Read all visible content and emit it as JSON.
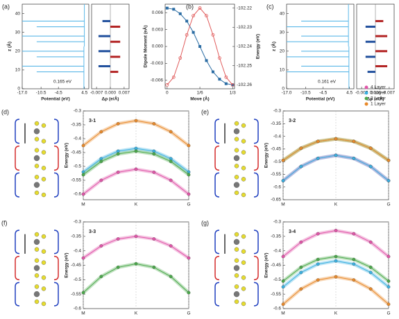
{
  "chart_data": [
    {
      "type": "profile",
      "label": "(a)",
      "xlabel": "Potential (eV)",
      "ylabel": "z (Å)",
      "xlim": [
        -17,
        6
      ],
      "xticks": [
        {
          "value": -17,
          "label": "-17.0"
        },
        {
          "value": -10.5,
          "label": "-10.5"
        },
        {
          "value": -4.5,
          "label": "-4.5"
        },
        4.5
      ],
      "ylim": [
        0,
        45
      ],
      "yticks": [
        0,
        10,
        20,
        30,
        40
      ],
      "z": [
        9,
        12,
        17,
        20,
        25,
        28,
        33,
        36
      ],
      "values": [
        -12,
        -17,
        -12,
        -17,
        -12,
        -17,
        -12,
        -17
      ],
      "vacuum": [
        4.3,
        4.465
      ],
      "color": "#5bb8e8",
      "annotation": "0.165 eV",
      "drho_label": "Δρ (e/Å)",
      "drho_xlim": [
        -0.0095,
        0.0095
      ],
      "drho_xticks": [
        -0.007,
        {
          "value": 0,
          "label": "0.000"
        },
        0.007
      ],
      "drho": [
        0.004,
        -0.006,
        0.005,
        -0.006,
        0.005,
        -0.006,
        0.005,
        -0.004
      ]
    },
    {
      "type": "dual",
      "label": "(b)",
      "xlabel": "Move (Å)",
      "ylabel": "Dipole Moment (eÅ)",
      "y2label": "Energy (eV)",
      "x": [
        0,
        0.0333,
        0.0667,
        0.1,
        0.1333,
        0.1667,
        0.2,
        0.2333,
        0.2667,
        0.3,
        0.3333
      ],
      "xlim": [
        -0.01,
        0.343
      ],
      "xticks": [
        0,
        {
          "value": 0.1667,
          "label": "1/6"
        },
        {
          "value": 0.3333,
          "label": "1/3"
        }
      ],
      "ylim": [
        -0.0075,
        0.0075
      ],
      "yticks": [
        0.006,
        0.003,
        {
          "value": 0,
          "label": "0.000"
        },
        -0.003,
        -0.006
      ],
      "y2lim": [
        -102.262,
        -102.218
      ],
      "y2ticks": [
        -102.22,
        -102.23,
        -102.24,
        -102.25,
        -102.26
      ],
      "series": [
        {
          "color": "#2b6ca3",
          "values": [
            0.0068,
            0.0066,
            0.0058,
            0.0045,
            0.0025,
            0.0,
            -0.0025,
            -0.0045,
            -0.0058,
            -0.0066,
            -0.0068
          ]
        },
        {
          "color": "#e05a5a",
          "axis": "y2",
          "values": [
            -102.26,
            -102.256,
            -102.246,
            -102.234,
            -102.224,
            -102.22,
            -102.224,
            -102.234,
            -102.246,
            -102.256,
            -102.26
          ]
        }
      ]
    },
    {
      "type": "profile",
      "label": "(c)",
      "xlabel": "Potential (eV)",
      "ylabel": "z (Å)",
      "xlim": [
        -17,
        6
      ],
      "xticks": [
        {
          "value": -17,
          "label": "-17.0"
        },
        {
          "value": -10.5,
          "label": "-10.5"
        },
        {
          "value": -4.5,
          "label": "-4.5"
        },
        4.5
      ],
      "ylim": [
        0,
        45
      ],
      "yticks": [
        0,
        10,
        20,
        30,
        40
      ],
      "z": [
        9,
        12,
        17,
        20,
        25,
        28,
        33,
        36
      ],
      "values": [
        -17,
        -12,
        -17,
        -12,
        -17,
        -12,
        -17,
        -12
      ],
      "vacuum": [
        4.3,
        4.139
      ],
      "color": "#5bb8e8",
      "annotation": "0.161 eV",
      "drho_label": "Δρ (e/Å)",
      "drho_xlim": [
        -0.0095,
        0.0095
      ],
      "drho_xticks": [
        -0.007,
        {
          "value": 0,
          "label": "0.000"
        },
        0.007
      ],
      "drho": [
        -0.004,
        0.006,
        -0.005,
        0.006,
        -0.005,
        0.006,
        -0.005,
        0.004
      ]
    },
    {
      "type": "band",
      "label": "(d)",
      "title": "3-1",
      "ylabel": "Energy (eV)",
      "x": [
        0,
        0.17,
        0.33,
        0.5,
        0.67,
        0.83,
        1
      ],
      "xlim": [
        0,
        1
      ],
      "xticks": [
        {
          "value": 0,
          "label": "M"
        },
        {
          "value": 0.5,
          "label": "K"
        },
        {
          "value": 1,
          "label": "G"
        }
      ],
      "ylim": [
        -0.62,
        -0.3
      ],
      "yticks": [
        -0.3,
        -0.35,
        -0.4,
        -0.45,
        -0.5,
        -0.55,
        -0.6
      ],
      "series": [
        {
          "color": "#e8892a",
          "values": [
            -0.425,
            -0.375,
            -0.346,
            -0.335,
            -0.346,
            -0.375,
            -0.425
          ]
        },
        {
          "color": "#3ab0e0",
          "values": [
            -0.52,
            -0.472,
            -0.445,
            -0.435,
            -0.445,
            -0.472,
            -0.52
          ]
        },
        {
          "color": "#4aa84a",
          "values": [
            -0.53,
            -0.482,
            -0.455,
            -0.445,
            -0.455,
            -0.482,
            -0.53
          ]
        },
        {
          "color": "#e055a8",
          "values": [
            -0.6,
            -0.55,
            -0.521,
            -0.51,
            -0.521,
            -0.55,
            -0.6
          ]
        }
      ]
    },
    {
      "type": "band",
      "label": "(e)",
      "title": "3-2",
      "ylabel": "Energy (eV)",
      "legend": "upper right",
      "x": [
        0,
        0.17,
        0.33,
        0.5,
        0.67,
        0.83,
        1
      ],
      "xlim": [
        0,
        1
      ],
      "xticks": [
        {
          "value": 0,
          "label": "M"
        },
        {
          "value": 0.5,
          "label": "K"
        },
        {
          "value": 1,
          "label": "G"
        }
      ],
      "ylim": [
        -0.65,
        -0.3
      ],
      "yticks": [
        -0.3,
        -0.35,
        -0.4,
        -0.45,
        -0.5,
        -0.55,
        -0.6,
        -0.65
      ],
      "series": [
        {
          "name": "4 Layer",
          "color": "#e055a8",
          "values": [
            -0.575,
            -0.519,
            -0.487,
            -0.475,
            -0.487,
            -0.519,
            -0.575
          ]
        },
        {
          "name": "3 Layer",
          "color": "#3ab0e0",
          "values": [
            -0.575,
            -0.519,
            -0.487,
            -0.475,
            -0.487,
            -0.519,
            -0.575
          ]
        },
        {
          "name": "2 Layer",
          "color": "#4aa84a",
          "values": [
            -0.495,
            -0.447,
            -0.42,
            -0.41,
            -0.42,
            -0.447,
            -0.495
          ]
        },
        {
          "name": "1 Layer",
          "color": "#e8892a",
          "values": [
            -0.495,
            -0.447,
            -0.42,
            -0.41,
            -0.42,
            -0.447,
            -0.495
          ]
        }
      ]
    },
    {
      "type": "band",
      "label": "(f)",
      "title": "3-3",
      "ylabel": "Energy (eV)",
      "x": [
        0,
        0.17,
        0.33,
        0.5,
        0.67,
        0.83,
        1
      ],
      "xlim": [
        0,
        1
      ],
      "xticks": [
        {
          "value": 0,
          "label": "M"
        },
        {
          "value": 0.5,
          "label": "K"
        },
        {
          "value": 1,
          "label": "G"
        }
      ],
      "ylim": [
        -0.6,
        -0.3
      ],
      "yticks": [
        -0.3,
        -0.35,
        -0.4,
        -0.45,
        -0.5,
        -0.55,
        -0.6
      ],
      "series": [
        {
          "color": "#e055a8",
          "values": [
            -0.425,
            -0.383,
            -0.359,
            -0.35,
            -0.359,
            -0.383,
            -0.425
          ]
        },
        {
          "color": "#4aa84a",
          "values": [
            -0.545,
            -0.489,
            -0.457,
            -0.445,
            -0.457,
            -0.489,
            -0.545
          ]
        }
      ]
    },
    {
      "type": "band",
      "label": "(g)",
      "title": "3-4",
      "ylabel": "Energy (eV)",
      "x": [
        0,
        0.17,
        0.33,
        0.5,
        0.67,
        0.83,
        1
      ],
      "xlim": [
        0,
        1
      ],
      "xticks": [
        {
          "value": 0,
          "label": "M"
        },
        {
          "value": 0.5,
          "label": "K"
        },
        {
          "value": 1,
          "label": "G"
        }
      ],
      "ylim": [
        -0.6,
        -0.3
      ],
      "yticks": [
        -0.3,
        -0.35,
        -0.4,
        -0.45,
        -0.5,
        -0.55,
        -0.6
      ],
      "series": [
        {
          "color": "#e055a8",
          "values": [
            -0.42,
            -0.37,
            -0.341,
            -0.33,
            -0.341,
            -0.37,
            -0.42
          ]
        },
        {
          "color": "#4aa84a",
          "values": [
            -0.505,
            -0.457,
            -0.43,
            -0.42,
            -0.43,
            -0.457,
            -0.505
          ]
        },
        {
          "color": "#3ab0e0",
          "values": [
            -0.525,
            -0.475,
            -0.446,
            -0.435,
            -0.446,
            -0.475,
            -0.525
          ]
        },
        {
          "color": "#e8892a",
          "values": [
            -0.585,
            -0.532,
            -0.501,
            -0.49,
            -0.501,
            -0.532,
            -0.585
          ]
        }
      ]
    }
  ]
}
